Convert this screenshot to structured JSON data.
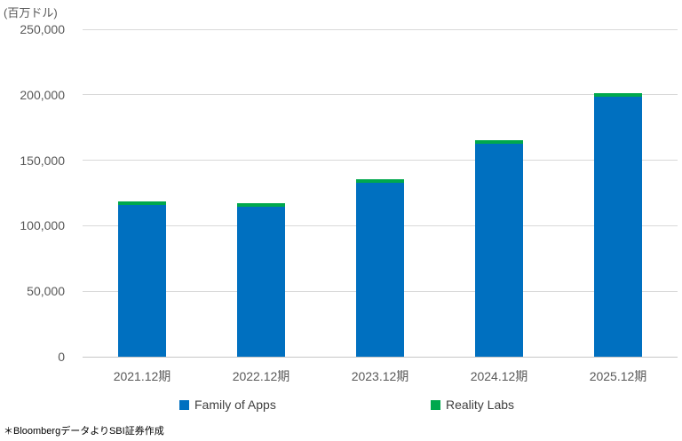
{
  "chart_data": {
    "type": "bar",
    "stacked": true,
    "title": "",
    "unit_label": "(百万ドル)",
    "categories": [
      "2021.12期",
      "2022.12期",
      "2023.12期",
      "2024.12期",
      "2025.12期"
    ],
    "series": [
      {
        "name": "Family of Apps",
        "color": "#0070C0",
        "values": [
          115655,
          114450,
          133006,
          162355,
          198700
        ]
      },
      {
        "name": "Reality Labs",
        "color": "#00A84D",
        "values": [
          2274,
          2159,
          1896,
          2146,
          2600
        ]
      }
    ],
    "ylim": [
      0,
      250000
    ],
    "y_tick_values": [
      0,
      50000,
      100000,
      150000,
      200000,
      250000
    ],
    "y_tick_labels": [
      "0",
      "50,000",
      "100,000",
      "150,000",
      "200,000",
      "250,000"
    ],
    "xlabel": "",
    "ylabel": "",
    "grid": "horizontal",
    "legend_position": "bottom"
  },
  "colors": {
    "gridline": "#d9d9d9",
    "axis_line": "#c6c6c6",
    "tick_text": "#595959",
    "legend_text": "#404040"
  },
  "footer": {
    "source_note": "＊BloombergデータよりSBI証券作成"
  }
}
